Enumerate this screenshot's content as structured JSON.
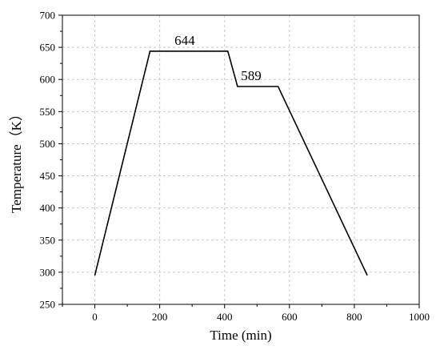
{
  "chart_data": {
    "type": "line",
    "title": "",
    "xlabel": "Time (min)",
    "ylabel": "Temperature（K）",
    "xlim": [
      -100,
      1000
    ],
    "ylim": [
      250,
      700
    ],
    "xticks": [
      0,
      200,
      400,
      600,
      800,
      1000
    ],
    "xminor_ticks": [
      -100,
      100,
      300,
      500,
      700,
      900
    ],
    "yticks": [
      250,
      300,
      350,
      400,
      450,
      500,
      550,
      600,
      650,
      700
    ],
    "grid": true,
    "legend": "none",
    "series": [
      {
        "points": [
          {
            "x": 0,
            "y": 295
          },
          {
            "x": 170,
            "y": 644
          },
          {
            "x": 410,
            "y": 644
          },
          {
            "x": 440,
            "y": 589
          },
          {
            "x": 565,
            "y": 589
          },
          {
            "x": 840,
            "y": 295
          }
        ]
      }
    ],
    "annotations": [
      {
        "text": "644",
        "x": 277,
        "y": 654
      },
      {
        "text": "589",
        "x": 482,
        "y": 599
      }
    ]
  }
}
